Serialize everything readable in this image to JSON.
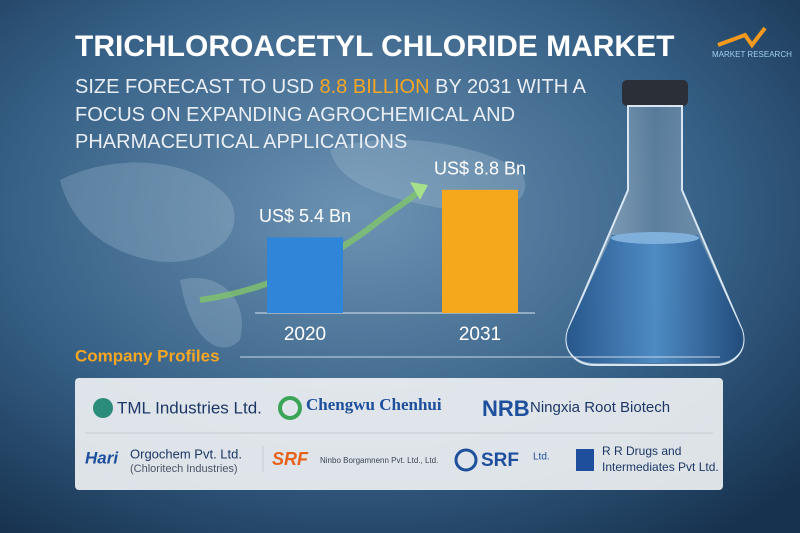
{
  "header": {
    "title": "TRICHLOROACETYL CHLORIDE MARKET",
    "subtitle": [
      "SIZE FORECAST TO USD ",
      "8.8 BILLION",
      " BY 2031 WITH A",
      "FOCUS ON EXPANDING AGROCHEMICAL AND",
      "PHARMACEUTICAL APPLICATIONS"
    ],
    "logo": "MARKET RESEARCH"
  },
  "chart_data": {
    "type": "bar",
    "categories": [
      "2020",
      "2031"
    ],
    "values": [
      5.4,
      8.8
    ],
    "value_labels": [
      "US$ 5.4 Bn",
      "US$ 8.8 Bn"
    ],
    "colors": [
      "#2f86d8",
      "#f6a81c"
    ]
  },
  "companies": {
    "title": "Company Profiles",
    "items": [
      {
        "name": "TML Industries Ltd."
      },
      {
        "name": "Chengwu Chenhui"
      },
      {
        "mark": "NRB",
        "name": "Ningxia Root Biotech"
      },
      {
        "mark": "Hari",
        "name": "Orgochem Pvt. Ltd.",
        "sub": "(Chloritech Industries)"
      },
      {
        "mark": "SRF",
        "name": "Ninbo Borgamnenn Pvt. Ltd., Ltd."
      },
      {
        "mark": "SRF",
        "name": "Ltd."
      },
      {
        "name": "R R Drugs and",
        "sub": "Intermediates Pvt Ltd."
      }
    ]
  }
}
